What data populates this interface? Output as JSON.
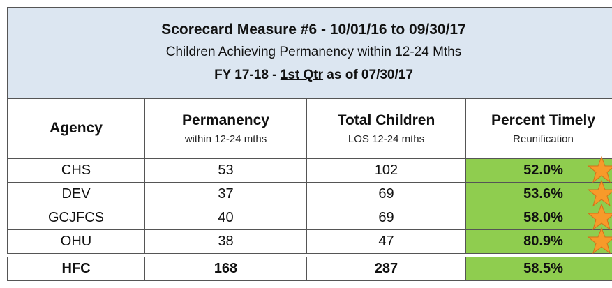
{
  "header": {
    "title": "Scorecard Measure #6 - 10/01/16 to 09/30/17",
    "subtitle": "Children Achieving Permanency within 12-24 Mths",
    "period": [
      "FY 17-18 - ",
      "1st Qtr",
      " as of 07/30/17"
    ]
  },
  "table": {
    "columns": [
      [
        "Agency"
      ],
      [
        "Permanency",
        "within 12-24 mths"
      ],
      [
        "Total Children",
        "LOS 12-24 mths"
      ],
      [
        "Percent Timely",
        "Reunification"
      ]
    ],
    "rows": [
      [
        "CHS",
        53,
        102,
        "52.0%"
      ],
      [
        "DEV",
        37,
        69,
        "53.6%"
      ],
      [
        "GCJFCS",
        40,
        69,
        "58.0%"
      ],
      [
        "OHU",
        38,
        47,
        "80.9%"
      ]
    ],
    "total": [
      "HFC",
      168,
      287,
      "58.5%"
    ]
  }
}
